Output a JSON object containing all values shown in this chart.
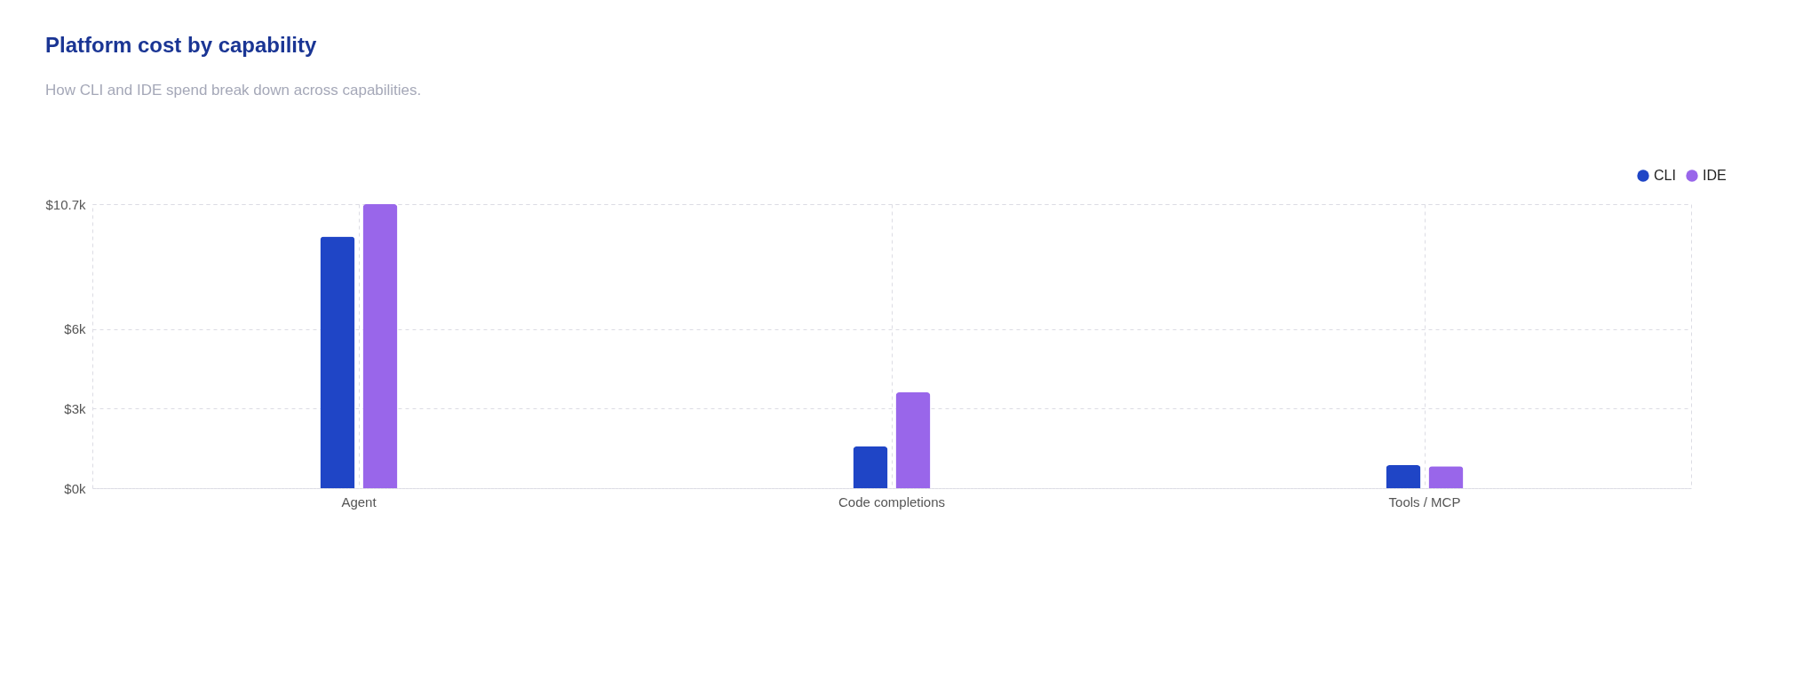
{
  "chart_data": {
    "type": "bar",
    "title": "Platform cost by capability",
    "subtitle": "How CLI and IDE spend break down across capabilities.",
    "categories": [
      "Agent",
      "Code completions",
      "Tools / MCP"
    ],
    "series": [
      {
        "name": "CLI",
        "color": "#1f45c6",
        "values": [
          9480,
          1570,
          870
        ]
      },
      {
        "name": "IDE",
        "color": "#9966ea",
        "values": [
          10700,
          3610,
          830
        ]
      }
    ],
    "ylim": [
      0,
      10700
    ],
    "yticks": [
      {
        "value": 0,
        "label": "$0k"
      },
      {
        "value": 3000,
        "label": "$3k"
      },
      {
        "value": 6000,
        "label": "$6k"
      },
      {
        "value": 10700,
        "label": "$10.7k"
      }
    ],
    "grid": true,
    "legend": "top right"
  }
}
